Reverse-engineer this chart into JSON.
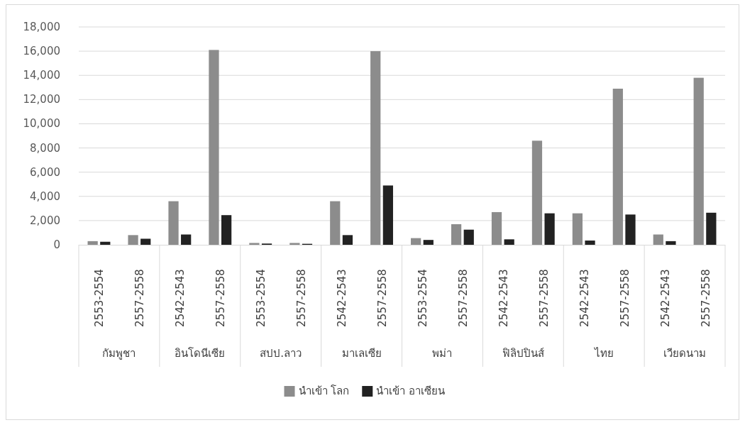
{
  "chart_data": {
    "type": "bar",
    "categories": [
      "2553-2554",
      "2557-2558",
      "2542-2543",
      "2557-2558",
      "2553-2554",
      "2557-2558",
      "2542-2543",
      "2557-2558",
      "2553-2554",
      "2557-2558",
      "2542-2543",
      "2557-2558",
      "2542-2543",
      "2557-2558",
      "2542-2543",
      "2557-2558"
    ],
    "annotations": [
      "กัมพูชา",
      "อินโดนีเซีย",
      "สปป.ลาว",
      "มาเลเซีย",
      "พม่า",
      "ฟิลิปปินส์",
      "ไทย",
      "เวียดนาม"
    ],
    "series": [
      {
        "name": "นำเข้า โลก",
        "color": "#8c8c8c",
        "values": [
          300,
          800,
          3600,
          16100,
          150,
          150,
          3600,
          16000,
          550,
          1700,
          2700,
          8600,
          2600,
          12900,
          850,
          13800
        ]
      },
      {
        "name": "นำเข้า อาเซียน",
        "color": "#222222",
        "values": [
          250,
          500,
          850,
          2450,
          100,
          80,
          800,
          4900,
          400,
          1250,
          450,
          2600,
          350,
          2500,
          300,
          2650
        ]
      }
    ],
    "ylim": [
      0,
      18000
    ],
    "yticks": [
      {
        "value": 0,
        "label": "0"
      },
      {
        "value": 2000,
        "label": "2,000"
      },
      {
        "value": 4000,
        "label": "4,000"
      },
      {
        "value": 6000,
        "label": "6,000"
      },
      {
        "value": 8000,
        "label": "8,000"
      },
      {
        "value": 10000,
        "label": "10,000"
      },
      {
        "value": 12000,
        "label": "12,000"
      },
      {
        "value": 14000,
        "label": "14,000"
      },
      {
        "value": 16000,
        "label": "16,000"
      },
      {
        "value": 18000,
        "label": "18,000"
      }
    ],
    "grid": "y",
    "legend": "bottom"
  }
}
